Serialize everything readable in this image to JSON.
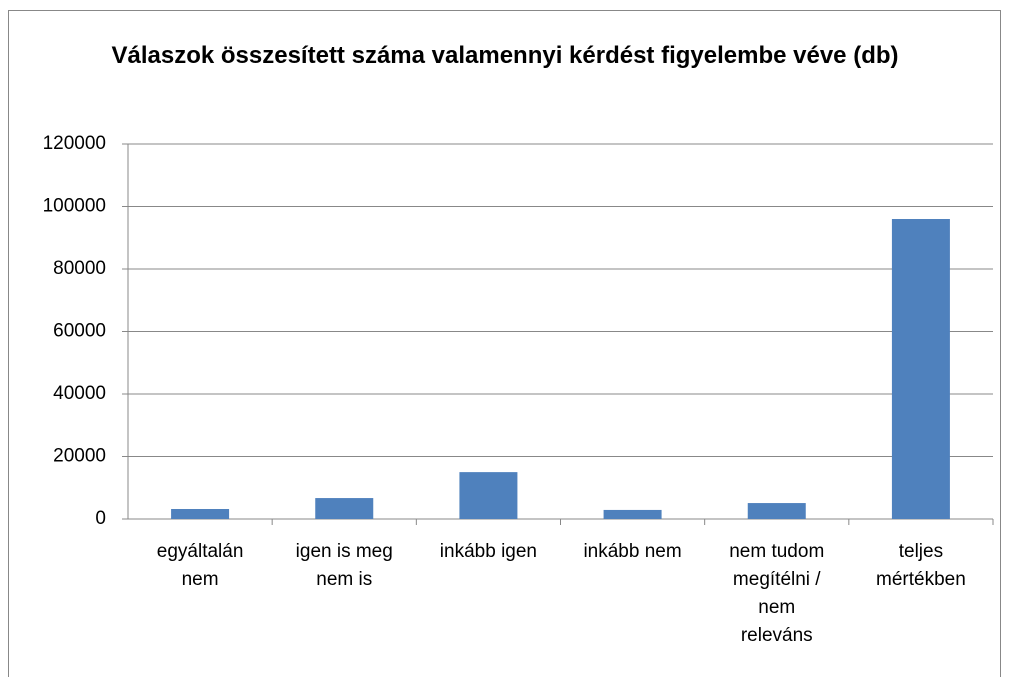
{
  "chart_data": {
    "type": "bar",
    "title": "Válaszok összesített száma valamennyi kérdést figyelembe véve (db)",
    "categories": [
      "egyáltalán nem",
      "igen is meg nem is",
      "inkább igen",
      "inkább nem",
      "nem tudom megítélni / nem releváns",
      "teljes mértékben"
    ],
    "values": [
      3200,
      6700,
      15000,
      2900,
      5100,
      96000
    ],
    "color": "#4f81bd",
    "ylim": [
      0,
      120000
    ],
    "yticks": [
      0,
      20000,
      40000,
      60000,
      80000,
      100000,
      120000
    ],
    "grid": true
  }
}
